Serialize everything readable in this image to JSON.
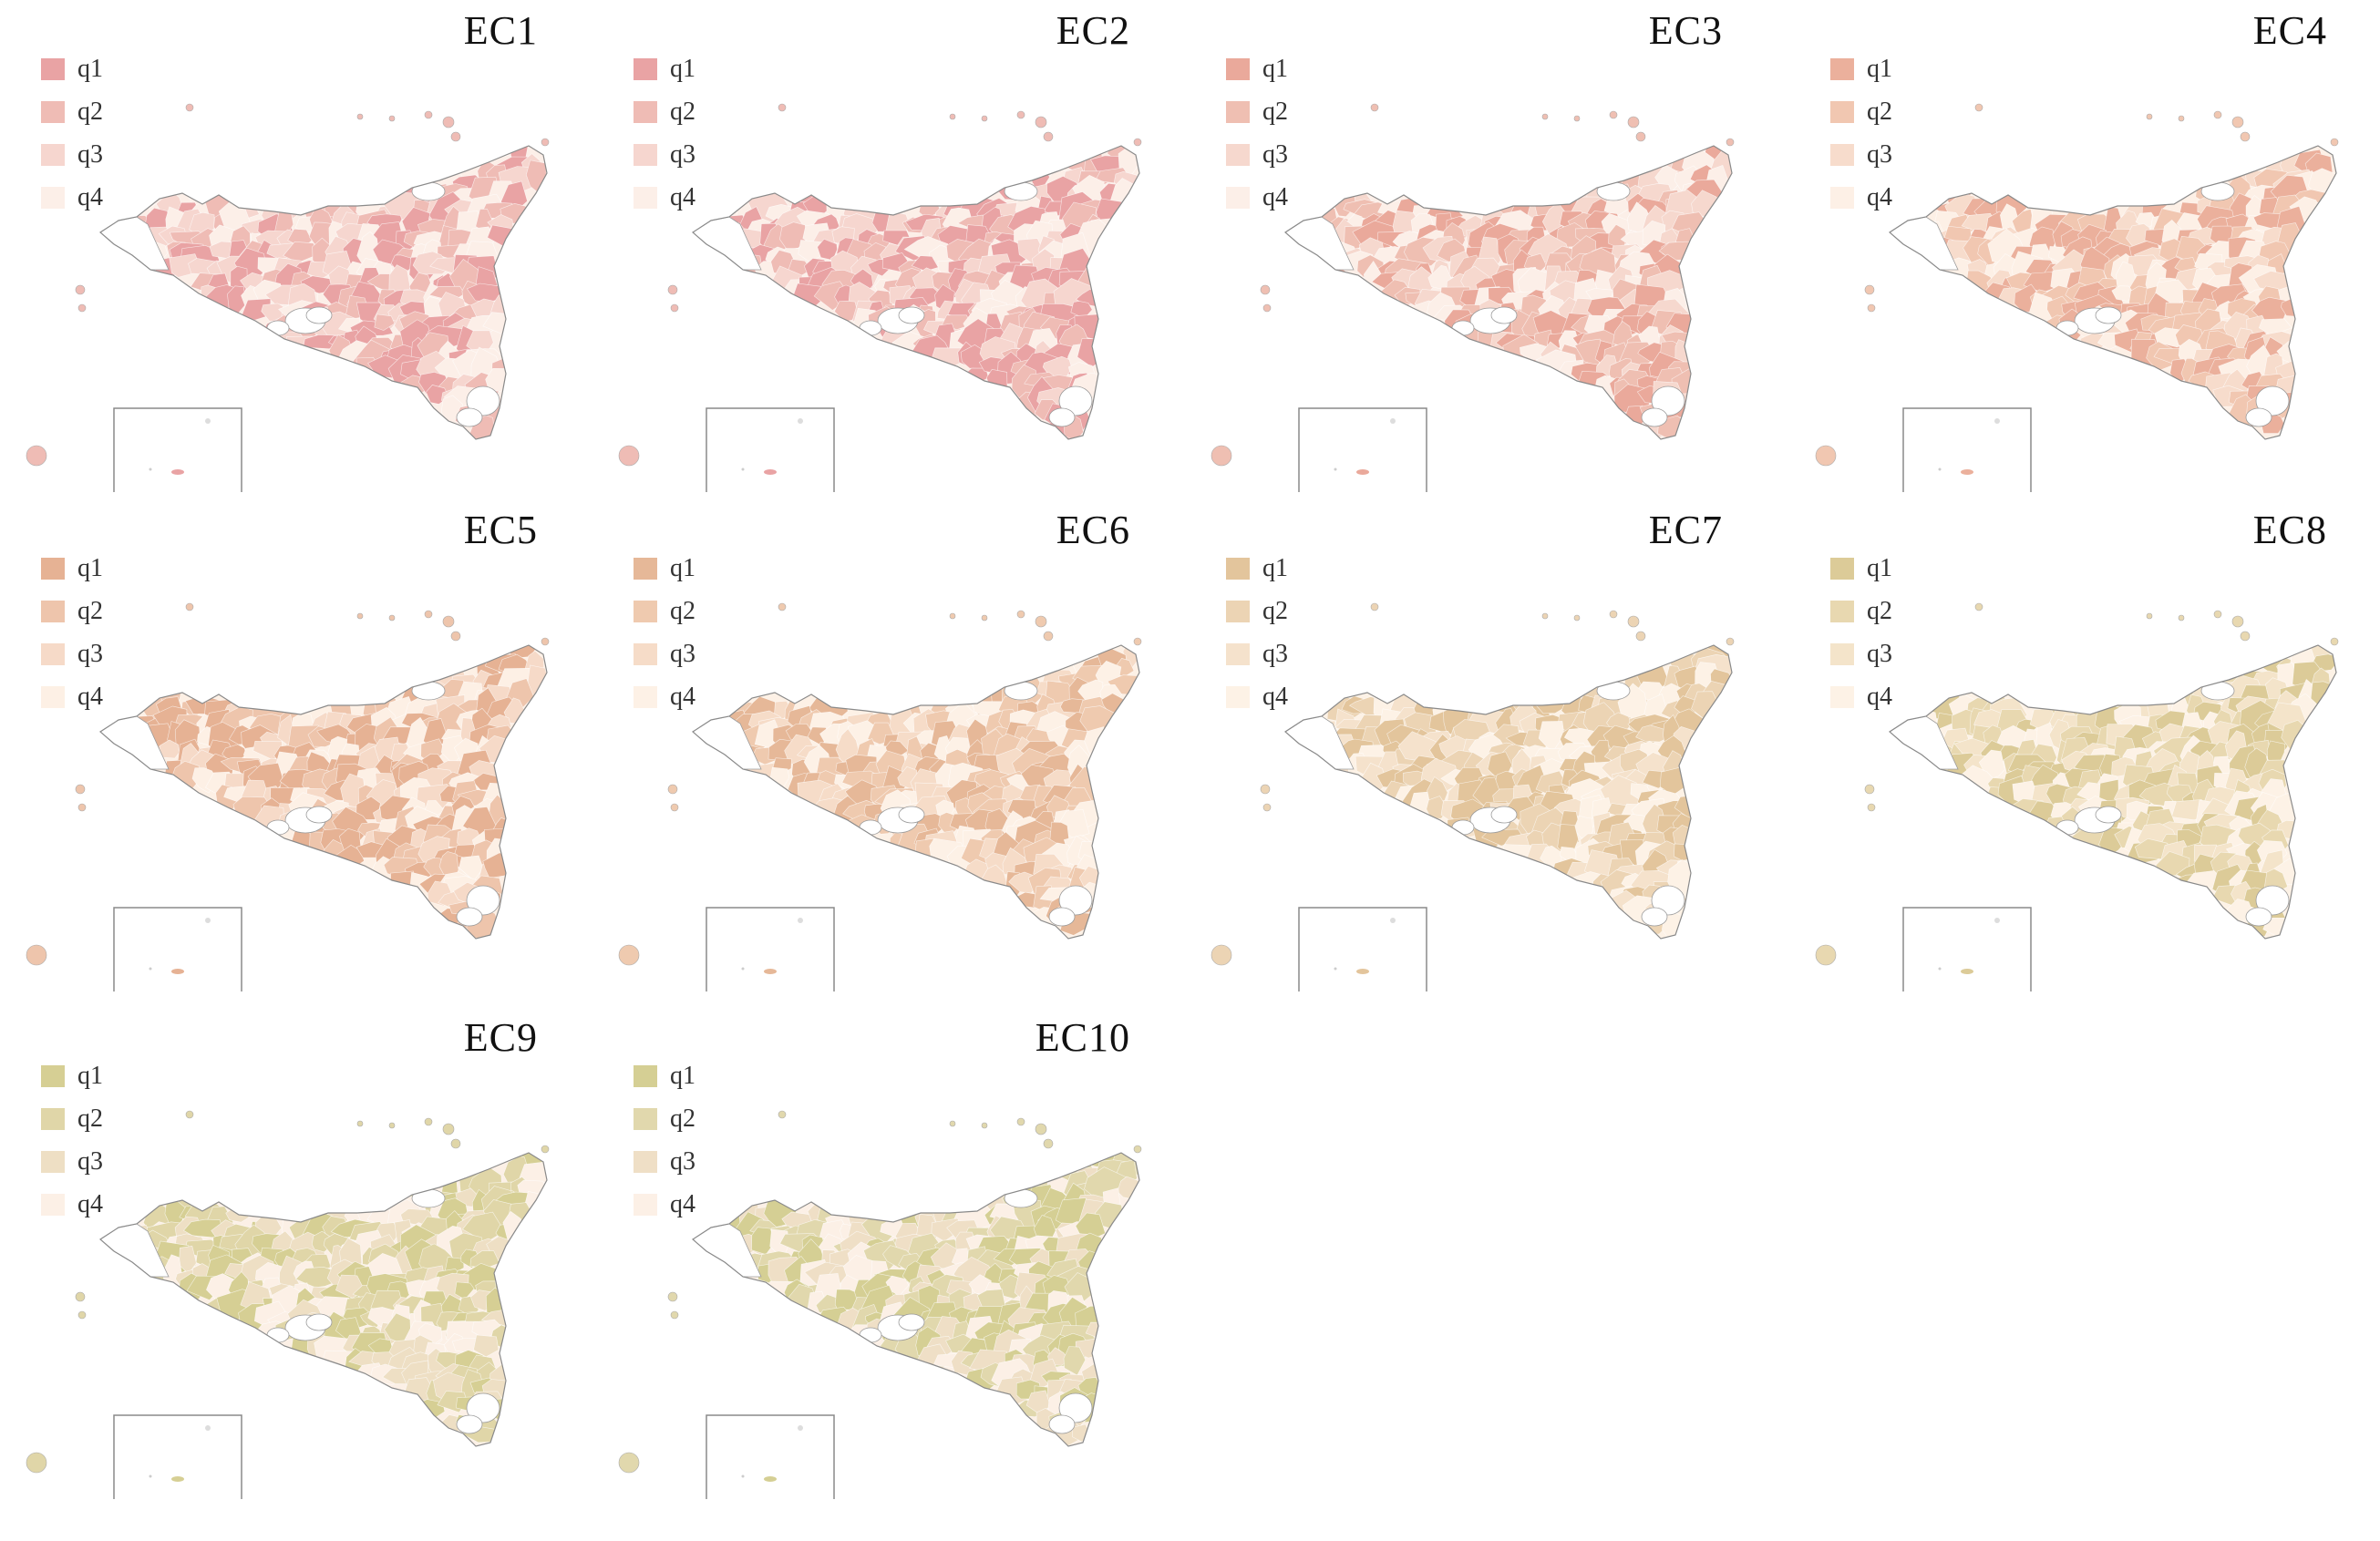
{
  "legend_labels": [
    "q1",
    "q2",
    "q3",
    "q4"
  ],
  "panels": [
    {
      "title": "EC1",
      "colors": [
        "#e9a3a4",
        "#efbcb5",
        "#f6d6cf",
        "#fcefe8"
      ]
    },
    {
      "title": "EC2",
      "colors": [
        "#e9a3a4",
        "#efbcb5",
        "#f6d6cf",
        "#fcefe8"
      ]
    },
    {
      "title": "EC3",
      "colors": [
        "#eaa99b",
        "#efbfb2",
        "#f6d8ce",
        "#fcefe8"
      ]
    },
    {
      "title": "EC4",
      "colors": [
        "#ebb09c",
        "#f1c7b1",
        "#f7dccc",
        "#fdf0e6"
      ]
    },
    {
      "title": "EC5",
      "colors": [
        "#e6b294",
        "#eec5ac",
        "#f6dac8",
        "#fdf0e5"
      ]
    },
    {
      "title": "EC6",
      "colors": [
        "#e6b898",
        "#efcaaf",
        "#f6dcc8",
        "#fdf1e6"
      ]
    },
    {
      "title": "EC7",
      "colors": [
        "#e3c59c",
        "#ecd4b4",
        "#f5e2cc",
        "#fdf2e6"
      ]
    },
    {
      "title": "EC8",
      "colors": [
        "#dccb98",
        "#e8d8b0",
        "#f4e4ca",
        "#fdf2e6"
      ]
    },
    {
      "title": "EC9",
      "colors": [
        "#d6cf94",
        "#e0d6a8",
        "#eedfc4",
        "#fcf0e6"
      ]
    },
    {
      "title": "EC10",
      "colors": [
        "#d5cf94",
        "#e1d8ad",
        "#efdfc6",
        "#fcf0e6"
      ]
    }
  ]
}
